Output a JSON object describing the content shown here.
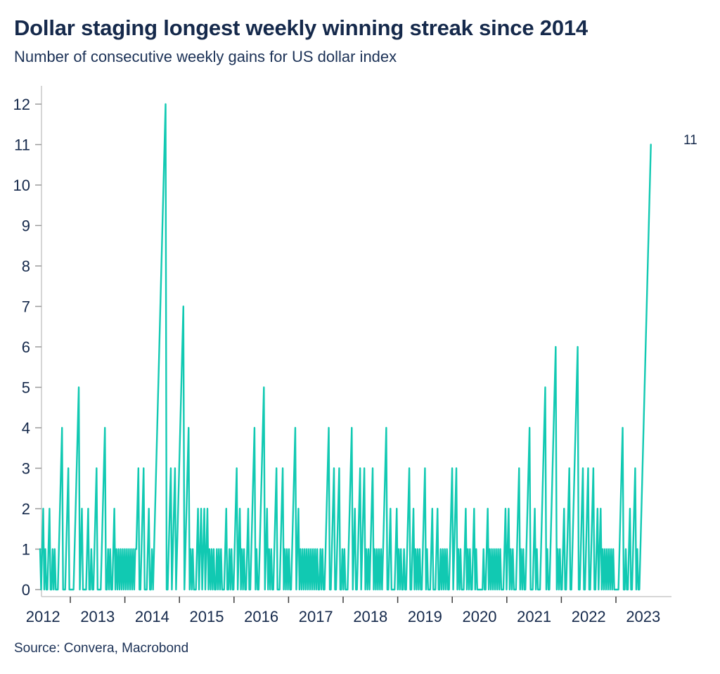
{
  "header": {
    "title": "Dollar staging longest weekly winning streak since 2014",
    "subtitle": "Number of consecutive weekly gains for US dollar index"
  },
  "source": {
    "text": "Source: Convera, Macrobond"
  },
  "colors": {
    "accent_teal": "#11c9b2",
    "navy_text": "#15294b",
    "axis_line": "#c9c9c9",
    "y_tick": "#9a9a9a",
    "x_tick": "#3c3c3c"
  },
  "chart_data": {
    "type": "line",
    "title": "Dollar staging longest weekly winning streak since 2014",
    "subtitle": "Number of consecutive weekly gains for US dollar index",
    "series_name": "Consecutive weekly gains, US dollar index",
    "ylim": [
      0,
      12
    ],
    "yticks": [
      0,
      1,
      2,
      3,
      4,
      5,
      6,
      7,
      8,
      9,
      10,
      11,
      12
    ],
    "year_tick_years": [
      2013,
      2014,
      2015,
      2016,
      2017,
      2018,
      2019,
      2020,
      2021,
      2022,
      2023
    ],
    "year_labels": [
      "2012",
      "2013",
      "2014",
      "2015",
      "2016",
      "2017",
      "2018",
      "2019",
      "2020",
      "2021",
      "2022",
      "2023"
    ],
    "grid": false,
    "legend": "none",
    "annotation": {
      "text": "11",
      "week_index": 584,
      "value": 11
    },
    "notable_peaks": [
      {
        "year": 2012,
        "peaks": [
          2,
          2,
          4,
          3
        ]
      },
      {
        "year": 2013,
        "peaks": [
          5,
          2,
          2,
          3,
          4,
          2
        ]
      },
      {
        "year": 2014,
        "peaks": [
          3,
          3,
          2,
          12,
          3,
          3
        ]
      },
      {
        "year": 2015,
        "peaks": [
          7,
          4,
          2,
          2,
          2,
          2
        ]
      },
      {
        "year": 2016,
        "peaks": [
          3,
          2,
          2,
          4,
          5,
          2,
          3,
          3
        ]
      },
      {
        "year": 2017,
        "peaks": [
          4,
          2,
          4,
          3,
          3
        ]
      },
      {
        "year": 2018,
        "peaks": [
          4,
          2,
          3,
          3,
          3,
          4,
          2,
          2
        ]
      },
      {
        "year": 2019,
        "peaks": [
          3,
          2,
          3,
          2,
          2
        ]
      },
      {
        "year": 2020,
        "peaks": [
          3,
          3,
          2,
          2,
          2
        ]
      },
      {
        "year": 2021,
        "peaks": [
          2,
          2,
          3,
          4,
          2,
          5,
          6
        ]
      },
      {
        "year": 2022,
        "peaks": [
          2,
          3,
          6,
          3,
          3,
          3,
          2,
          2
        ]
      },
      {
        "year": 2023,
        "peaks": [
          4,
          2,
          3,
          11
        ]
      }
    ],
    "weekly_values": [
      1,
      0,
      1,
      2,
      0,
      1,
      0,
      0,
      1,
      2,
      0,
      0,
      1,
      0,
      1,
      0,
      0,
      0,
      1,
      2,
      3,
      4,
      0,
      0,
      0,
      1,
      2,
      3,
      0,
      0,
      0,
      0,
      0,
      1,
      2,
      3,
      4,
      5,
      0,
      1,
      2,
      0,
      0,
      0,
      0,
      1,
      2,
      0,
      0,
      1,
      0,
      0,
      1,
      2,
      3,
      0,
      0,
      0,
      0,
      1,
      2,
      3,
      4,
      0,
      0,
      1,
      0,
      1,
      0,
      0,
      1,
      2,
      0,
      1,
      0,
      1,
      0,
      1,
      0,
      1,
      0,
      1,
      0,
      1,
      0,
      1,
      0,
      1,
      0,
      1,
      0,
      1,
      1,
      2,
      3,
      0,
      0,
      1,
      2,
      3,
      0,
      0,
      0,
      1,
      2,
      0,
      0,
      1,
      0,
      1,
      2,
      3,
      4,
      5,
      6,
      7,
      8,
      9,
      10,
      11,
      12,
      0,
      0,
      1,
      2,
      3,
      0,
      1,
      2,
      3,
      0,
      1,
      2,
      3,
      4,
      5,
      6,
      7,
      0,
      1,
      2,
      3,
      4,
      0,
      1,
      0,
      1,
      0,
      0,
      0,
      1,
      2,
      0,
      1,
      2,
      0,
      1,
      2,
      0,
      1,
      2,
      0,
      1,
      0,
      1,
      0,
      1,
      0,
      0,
      1,
      0,
      1,
      0,
      1,
      0,
      0,
      0,
      1,
      2,
      0,
      0,
      1,
      0,
      1,
      0,
      0,
      1,
      2,
      3,
      0,
      1,
      2,
      0,
      1,
      0,
      1,
      0,
      0,
      1,
      2,
      0,
      0,
      1,
      2,
      3,
      4,
      0,
      1,
      0,
      0,
      1,
      2,
      3,
      4,
      5,
      0,
      1,
      2,
      0,
      1,
      0,
      1,
      0,
      0,
      1,
      2,
      3,
      0,
      0,
      0,
      1,
      2,
      3,
      0,
      1,
      0,
      1,
      0,
      1,
      0,
      0,
      1,
      2,
      3,
      4,
      0,
      1,
      2,
      0,
      1,
      0,
      1,
      0,
      1,
      0,
      1,
      0,
      1,
      0,
      1,
      0,
      1,
      0,
      1,
      0,
      1,
      0,
      0,
      1,
      0,
      1,
      0,
      0,
      1,
      2,
      3,
      4,
      0,
      0,
      1,
      2,
      3,
      0,
      0,
      1,
      2,
      3,
      0,
      0,
      1,
      0,
      1,
      0,
      0,
      0,
      1,
      2,
      3,
      4,
      0,
      1,
      2,
      0,
      0,
      1,
      2,
      3,
      0,
      1,
      2,
      3,
      0,
      1,
      0,
      1,
      0,
      1,
      2,
      3,
      0,
      1,
      0,
      1,
      0,
      1,
      0,
      1,
      0,
      1,
      2,
      3,
      4,
      0,
      0,
      1,
      2,
      0,
      0,
      0,
      0,
      1,
      2,
      0,
      1,
      0,
      1,
      0,
      0,
      1,
      0,
      0,
      1,
      2,
      3,
      0,
      0,
      1,
      2,
      0,
      1,
      0,
      1,
      0,
      1,
      0,
      0,
      1,
      2,
      3,
      0,
      1,
      0,
      0,
      0,
      1,
      2,
      0,
      0,
      0,
      1,
      2,
      0,
      0,
      1,
      0,
      1,
      0,
      1,
      0,
      1,
      0,
      0,
      1,
      2,
      3,
      0,
      1,
      2,
      3,
      0,
      1,
      0,
      1,
      0,
      0,
      0,
      1,
      2,
      0,
      1,
      0,
      1,
      0,
      0,
      1,
      2,
      0,
      1,
      0,
      0,
      0,
      0,
      0,
      0,
      1,
      0,
      0,
      1,
      2,
      0,
      1,
      0,
      1,
      0,
      1,
      0,
      1,
      0,
      1,
      0,
      1,
      0,
      0,
      0,
      1,
      2,
      0,
      1,
      2,
      0,
      1,
      0,
      1,
      0,
      0,
      0,
      1,
      2,
      3,
      0,
      1,
      0,
      1,
      0,
      0,
      1,
      2,
      3,
      4,
      0,
      0,
      0,
      1,
      2,
      0,
      1,
      0,
      0,
      0,
      1,
      2,
      3,
      4,
      5,
      0,
      1,
      0,
      0,
      1,
      2,
      3,
      4,
      5,
      6,
      0,
      1,
      0,
      1,
      0,
      0,
      1,
      2,
      0,
      0,
      1,
      2,
      3,
      0,
      0,
      1,
      2,
      3,
      4,
      5,
      6,
      0,
      0,
      1,
      2,
      3,
      0,
      0,
      1,
      2,
      3,
      0,
      0,
      1,
      2,
      3,
      0,
      0,
      1,
      2,
      0,
      1,
      2,
      0,
      1,
      0,
      1,
      0,
      1,
      0,
      1,
      0,
      1,
      0,
      1,
      0,
      0,
      0,
      0,
      0,
      1,
      2,
      3,
      4,
      0,
      0,
      1,
      0,
      0,
      1,
      2,
      0,
      0,
      1,
      2,
      3,
      0,
      1,
      0,
      0,
      1,
      2,
      3,
      4,
      5,
      6,
      7,
      8,
      9,
      10,
      11
    ]
  }
}
